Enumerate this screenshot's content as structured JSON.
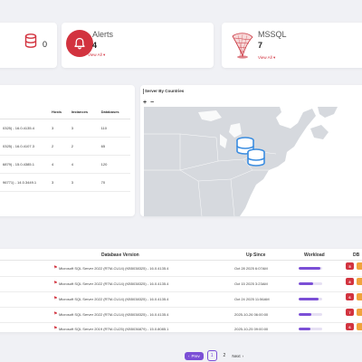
{
  "cards": {
    "databases": {
      "value": "0",
      "color": "#d2333f"
    },
    "alerts": {
      "title": "Alerts",
      "value": "4",
      "view_all": "View All",
      "color": "#d2333f"
    },
    "mssql": {
      "title": "MSSQL",
      "value": "7",
      "view_all": "View All"
    }
  },
  "versions_table": {
    "headers": [
      "Hosts",
      "Instances",
      "Databases"
    ],
    "rows": [
      {
        "version": "0325) - 16.0.4135.4",
        "hosts": "3",
        "instances": "3",
        "databases": "110"
      },
      {
        "version": "0325) - 16.0.4107.3",
        "hosts": "2",
        "instances": "2",
        "databases": "65"
      },
      {
        "version": "6879) - 15.0.4385.1",
        "hosts": "4",
        "instances": "4",
        "databases": "120"
      },
      {
        "version": "96771) - 14.0.3449.1",
        "hosts": "3",
        "instances": "3",
        "databases": "70"
      }
    ]
  },
  "map": {
    "title": "Server By Countries",
    "zoom_in": "+",
    "zoom_out": "−",
    "land_color": "#d6d9de",
    "marker_color": "#3b8de0"
  },
  "servers_table": {
    "headers": {
      "version": "Database Version",
      "up_since": "Up Since",
      "workload": "Workload",
      "db": "DB"
    },
    "rows": [
      {
        "version": "Microsoft SQL Server 2022 (RTM-CU14) (KB5038325) - 16.0.4135.4",
        "up_since": "Oct 28 2025 6:07AM",
        "workload": 0.92,
        "db": "5"
      },
      {
        "version": "Microsoft SQL Server 2022 (RTM-CU14) (KB5038325) - 16.0.4135.4",
        "up_since": "Oct 15 2025 3:23AM",
        "workload": 0.6,
        "db": "8"
      },
      {
        "version": "Microsoft SQL Server 2022 (RTM-CU14) (KB5038325) - 16.0.4135.4",
        "up_since": "Oct 24 2025 11:56AM",
        "workload": 0.85,
        "db": "6"
      },
      {
        "version": "Microsoft SQL Server 2022 (RTM-CU14) (KB5038325) - 16.0.4135.4",
        "up_since": "2025-10-26 06:00:00",
        "workload": 0.55,
        "db": "7"
      },
      {
        "version": "Microsoft SQL Server 2019 (RTM-CU25) (KB5036879) - 15.0.8085.1",
        "up_since": "2025-10-25 09:00:00",
        "workload": 0.5,
        "db": "6"
      }
    ]
  },
  "pagination": {
    "prev": "Prev",
    "pages": [
      "1",
      "2"
    ],
    "next": "Next"
  },
  "colors": {
    "accent": "#7b4fd6",
    "danger": "#d2333f",
    "warning": "#f1a33c"
  }
}
